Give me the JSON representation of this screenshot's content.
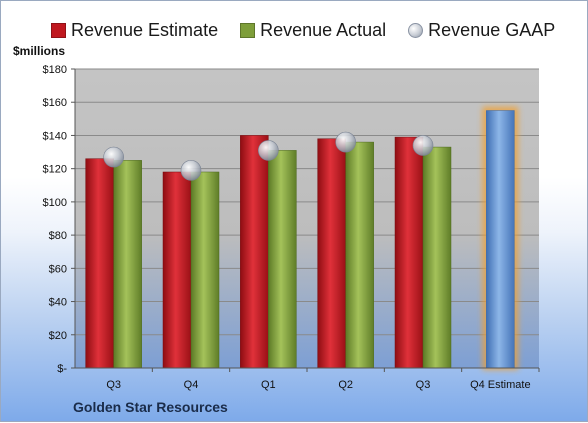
{
  "units_label": "$millions",
  "company": "Golden Star Resources",
  "colors": {
    "estimate": "#c0181f",
    "actual": "#7e9e3a",
    "gaap": "#b8bec8",
    "forecast": "#5c8fd0",
    "forecast_glow": "#f0a030",
    "plot_bg": "#c6c6c6"
  },
  "legend": [
    {
      "label": "Revenue Estimate",
      "marker": "square",
      "color": "#c0181f"
    },
    {
      "label": "Revenue Actual",
      "marker": "square",
      "color": "#7e9e3a"
    },
    {
      "label": "Revenue GAAP",
      "marker": "sphere",
      "color": "#b8bec8"
    }
  ],
  "chart_data": {
    "type": "bar",
    "categories": [
      "Q3",
      "Q4",
      "Q1",
      "Q2",
      "Q3",
      "Q4 Estimate"
    ],
    "series": [
      {
        "name": "Revenue Estimate",
        "values": [
          126,
          118,
          140,
          138,
          139,
          155
        ]
      },
      {
        "name": "Revenue Actual",
        "values": [
          125,
          118,
          131,
          136,
          133,
          null
        ]
      },
      {
        "name": "Revenue GAAP",
        "values": [
          127,
          119,
          131,
          136,
          134,
          null
        ]
      }
    ],
    "ylabel": "$millions",
    "ylim": [
      0,
      180
    ],
    "yticks": [
      0,
      20,
      40,
      60,
      80,
      100,
      120,
      140,
      160,
      180
    ],
    "ytick_labels": [
      "$-",
      "$20",
      "$40",
      "$60",
      "$80",
      "$100",
      "$120",
      "$140",
      "$160",
      "$180"
    ],
    "grid": true,
    "legend_position": "top"
  }
}
